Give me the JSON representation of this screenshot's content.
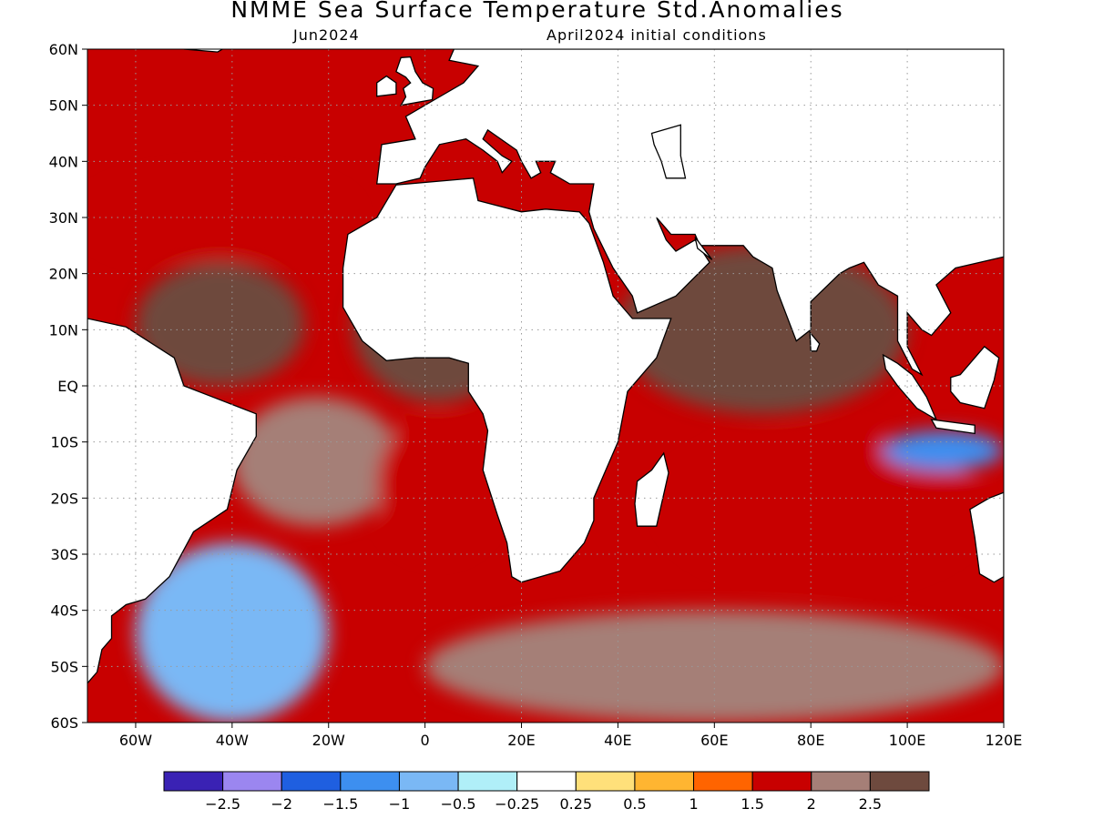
{
  "title": "NMME Sea Surface Temperature Std.Anomalies",
  "subtitle_left": "Jun2024",
  "subtitle_right": "April2024 initial conditions",
  "map": {
    "lon_range": [
      -70,
      120
    ],
    "lat_range": [
      -60,
      60
    ],
    "lat_ticks": [
      {
        "lat": 60,
        "label": "60N"
      },
      {
        "lat": 50,
        "label": "50N"
      },
      {
        "lat": 40,
        "label": "40N"
      },
      {
        "lat": 30,
        "label": "30N"
      },
      {
        "lat": 20,
        "label": "20N"
      },
      {
        "lat": 10,
        "label": "10N"
      },
      {
        "lat": 0,
        "label": "EQ"
      },
      {
        "lat": -10,
        "label": "10S"
      },
      {
        "lat": -20,
        "label": "20S"
      },
      {
        "lat": -30,
        "label": "30S"
      },
      {
        "lat": -40,
        "label": "40S"
      },
      {
        "lat": -50,
        "label": "50S"
      },
      {
        "lat": -60,
        "label": "60S"
      }
    ],
    "lon_ticks": [
      {
        "lon": -60,
        "label": "60W"
      },
      {
        "lon": -40,
        "label": "40W"
      },
      {
        "lon": -20,
        "label": "20W"
      },
      {
        "lon": 0,
        "label": "0"
      },
      {
        "lon": 20,
        "label": "20E"
      },
      {
        "lon": 40,
        "label": "40E"
      },
      {
        "lon": 60,
        "label": "60E"
      },
      {
        "lon": 80,
        "label": "80E"
      },
      {
        "lon": 100,
        "label": "100E"
      },
      {
        "lon": 120,
        "label": "120E"
      }
    ],
    "gridlines": "dotted",
    "land_color": "#ffffff"
  },
  "colorbar": {
    "colors": [
      "#3a22b4",
      "#9b86f0",
      "#1f5fe0",
      "#3d8ff0",
      "#7ab8f5",
      "#b0eff8",
      "#ffffff",
      "#ffe07a",
      "#ffb531",
      "#ff6400",
      "#c80000",
      "#a57f77",
      "#6e4a3e"
    ],
    "labels": [
      "−2.5",
      "−2",
      "−1.5",
      "−1",
      "−0.5",
      "−0.25",
      "0.25",
      "0.5",
      "1",
      "1.5",
      "2",
      "2.5"
    ]
  },
  "chart_data": {
    "type": "heatmap",
    "title": "NMME Sea Surface Temperature Std.Anomalies",
    "subtitle": [
      "Jun2024",
      "April2024 initial conditions"
    ],
    "xlabel": "",
    "ylabel": "",
    "x_range": [
      -70,
      120
    ],
    "y_range": [
      -60,
      60
    ],
    "levels": [
      -2.5,
      -2,
      -1.5,
      -1,
      -0.5,
      -0.25,
      0.25,
      0.5,
      1,
      1.5,
      2,
      2.5
    ],
    "regions": [
      {
        "lon": [
          -70,
          -15
        ],
        "lat": [
          22,
          38
        ],
        "value": 1.6
      },
      {
        "lon": [
          -15,
          20
        ],
        "lat": [
          -3,
          25
        ],
        "value": 2.7
      },
      {
        "lon": [
          -60,
          -25
        ],
        "lat": [
          0,
          22
        ],
        "value": 2.7
      },
      {
        "lon": [
          -40,
          -5
        ],
        "lat": [
          -25,
          -2
        ],
        "value": 2.2
      },
      {
        "lon": [
          -10,
          15
        ],
        "lat": [
          -30,
          -5
        ],
        "value": 1.8
      },
      {
        "lon": [
          -60,
          -20
        ],
        "lat": [
          -60,
          -28
        ],
        "value": -0.8
      },
      {
        "lon": [
          40,
          100
        ],
        "lat": [
          -5,
          25
        ],
        "value": 2.7
      },
      {
        "lon": [
          50,
          115
        ],
        "lat": [
          -35,
          -8
        ],
        "value": 1.5
      },
      {
        "lon": [
          95,
          120
        ],
        "lat": [
          -15,
          -8
        ],
        "value": -1.2
      },
      {
        "lon": [
          0,
          120
        ],
        "lat": [
          -60,
          -40
        ],
        "value": 2.3
      }
    ]
  }
}
